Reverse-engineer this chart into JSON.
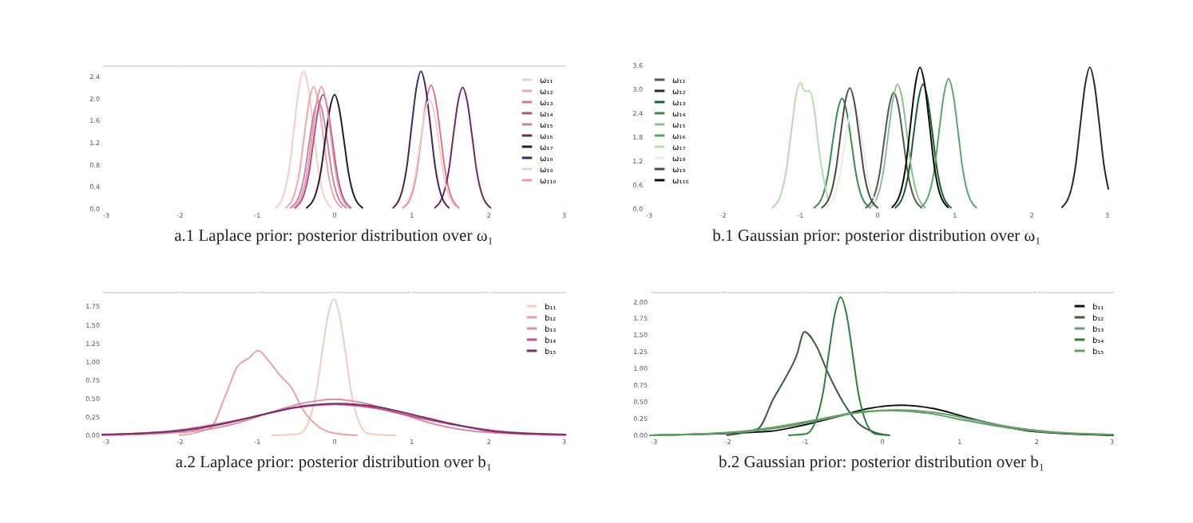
{
  "chart_data": [
    {
      "type": "line",
      "title": "a.1 Laplace prior: posterior distribution over ω₁",
      "legend": "top right",
      "grid": true,
      "xlim": [
        -3,
        3
      ],
      "xticks": [
        -3,
        -2,
        -1,
        0,
        1,
        2,
        3
      ],
      "ylim": [
        0,
        2.6
      ],
      "yticks": [
        {
          "value": 0,
          "label": "0.0"
        },
        0.4,
        0.8,
        1.2,
        1.6,
        {
          "value": 2,
          "label": "2.0"
        },
        2.4
      ],
      "series": [
        {
          "name": "ω₁₁",
          "color": "#f3cfc6",
          "x": [
            -0.75,
            -0.63,
            -0.57,
            -0.51,
            -0.45,
            -0.39,
            -0.33,
            -0.27,
            -0.21,
            -0.15,
            -0.03
          ],
          "values": [
            0.02,
            0.35,
            0.8,
            1.52,
            2.19,
            2.49,
            2.19,
            1.52,
            0.8,
            0.35,
            0.02
          ]
        },
        {
          "name": "ω₁₂",
          "color": "#eba9a7",
          "x": [
            -0.62,
            -0.5,
            -0.44,
            -0.38,
            -0.32,
            -0.26,
            -0.2,
            -0.14,
            -0.08,
            -0.02,
            0.1
          ],
          "values": [
            0.02,
            0.31,
            0.71,
            1.35,
            1.94,
            2.21,
            1.94,
            1.35,
            0.71,
            0.31,
            0.02
          ]
        },
        {
          "name": "ω₁₃",
          "color": "#d9768f",
          "x": [
            0.9,
            1.02,
            1.08,
            1.14,
            1.2,
            1.26,
            1.32,
            1.38,
            1.44,
            1.5,
            1.62
          ],
          "values": [
            0.02,
            0.31,
            0.72,
            1.37,
            1.97,
            2.24,
            1.97,
            1.37,
            0.72,
            0.31,
            0.02
          ]
        },
        {
          "name": "ω₁₄",
          "color": "#b0508a",
          "x": [
            -0.5,
            -0.38,
            -0.32,
            -0.26,
            -0.2,
            -0.14,
            -0.08,
            -0.02,
            0.04,
            0.1,
            0.22
          ],
          "values": [
            0.02,
            0.29,
            0.66,
            1.26,
            1.82,
            2.07,
            1.82,
            1.26,
            0.66,
            0.29,
            0.02
          ]
        },
        {
          "name": "ω₁₅",
          "color": "#c486ad",
          "x": [
            -0.56,
            -0.44,
            -0.38,
            -0.32,
            -0.26,
            -0.2,
            -0.14,
            -0.08,
            -0.02,
            0.04,
            0.16
          ],
          "values": [
            0.02,
            0.27,
            0.62,
            1.19,
            1.72,
            1.95,
            1.72,
            1.19,
            0.62,
            0.27,
            0.02
          ]
        },
        {
          "name": "ω₁₆",
          "color": "#6e2a68",
          "x": [
            1.31,
            1.43,
            1.49,
            1.55,
            1.61,
            1.67,
            1.73,
            1.79,
            1.85,
            1.91,
            2.03
          ],
          "values": [
            0.02,
            0.31,
            0.7,
            1.34,
            1.94,
            2.2,
            1.94,
            1.34,
            0.7,
            0.31,
            0.02
          ]
        },
        {
          "name": "ω₁₇",
          "color": "#2b1838",
          "x": [
            -0.35,
            -0.23,
            -0.17,
            -0.11,
            -0.05,
            0.01,
            0.07,
            0.13,
            0.19,
            0.25,
            0.37
          ],
          "values": [
            0.02,
            0.29,
            0.66,
            1.26,
            1.82,
            2.07,
            1.82,
            1.26,
            0.66,
            0.29,
            0.02
          ]
        },
        {
          "name": "ω₁₈",
          "color": "#4a2358",
          "x": [
            0.77,
            0.89,
            0.95,
            1.01,
            1.07,
            1.13,
            1.19,
            1.25,
            1.31,
            1.37,
            1.49
          ],
          "values": [
            0.02,
            0.35,
            0.8,
            1.52,
            2.19,
            2.49,
            2.19,
            1.52,
            0.8,
            0.35,
            0.02
          ]
        },
        {
          "name": "ω₁₉",
          "color": "#f0d2cb",
          "x": [
            0.88,
            1.0,
            1.06,
            1.12,
            1.18,
            1.24,
            1.3,
            1.36,
            1.42,
            1.48,
            1.6
          ],
          "values": [
            0.02,
            0.28,
            0.63,
            1.21,
            1.74,
            1.98,
            1.74,
            1.21,
            0.63,
            0.28,
            0.02
          ]
        },
        {
          "name": "ω₁₁₀",
          "color": "#e59aa3",
          "x": [
            -0.52,
            -0.4,
            -0.34,
            -0.28,
            -0.22,
            -0.16,
            -0.1,
            -0.04,
            0.02,
            0.08,
            0.2
          ],
          "values": [
            0.02,
            0.31,
            0.71,
            1.35,
            1.94,
            2.21,
            1.94,
            1.35,
            0.71,
            0.31,
            0.02
          ]
        }
      ]
    },
    {
      "type": "line",
      "title": "b.1 Gaussian prior: posterior distribution over ω₁",
      "legend": "top left",
      "grid": true,
      "xlim": [
        -3,
        3
      ],
      "xticks": [
        -3,
        -2,
        -1,
        0,
        1,
        2,
        3
      ],
      "ylim": [
        0,
        3.6
      ],
      "yticks": [
        {
          "value": 0,
          "label": "0.0"
        },
        0.6,
        1.2,
        1.8,
        2.4,
        {
          "value": 3,
          "label": "3.0"
        },
        3.6
      ],
      "series": [
        {
          "name": "ω₁₁",
          "color": "#555555",
          "x": [
            -0.14,
            -0.02,
            0.04,
            0.1,
            0.16,
            0.22,
            0.28,
            0.34,
            0.4,
            0.46,
            0.58
          ],
          "values": [
            0.03,
            0.41,
            0.93,
            1.78,
            2.57,
            2.92,
            2.57,
            1.78,
            0.93,
            0.41,
            0.03
          ]
        },
        {
          "name": "ω₁₂",
          "color": "#2a2a2a",
          "x": [
            2.4,
            2.52,
            2.58,
            2.64,
            2.7,
            2.76,
            2.82,
            2.88,
            2.94,
            3.0
          ],
          "values": [
            0.04,
            0.5,
            1.14,
            2.17,
            3.12,
            3.55,
            3.12,
            2.17,
            1.14,
            0.5
          ]
        },
        {
          "name": "ω₁₃",
          "color": "#1f5e2e",
          "x": [
            0.24,
            0.36,
            0.42,
            0.48,
            0.54,
            0.6,
            0.66,
            0.72,
            0.78,
            0.84,
            0.96
          ],
          "values": [
            0.03,
            0.44,
            1.0,
            1.91,
            2.75,
            3.13,
            2.75,
            1.91,
            1.0,
            0.44,
            0.03
          ]
        },
        {
          "name": "ω₁₄",
          "color": "#3f8a4f",
          "x": [
            -0.81,
            -0.69,
            -0.63,
            -0.57,
            -0.51,
            -0.45,
            -0.39,
            -0.33,
            -0.27,
            -0.21,
            -0.09
          ],
          "values": [
            0.03,
            0.39,
            0.89,
            1.69,
            2.44,
            2.77,
            2.44,
            1.69,
            0.89,
            0.39,
            0.03
          ]
        },
        {
          "name": "ω₁₅",
          "color": "#8cc28f",
          "x": [
            -0.09,
            0.03,
            0.09,
            0.15,
            0.21,
            0.27,
            0.33,
            0.39,
            0.45,
            0.51,
            0.63
          ],
          "values": [
            0.03,
            0.44,
            1.0,
            1.9,
            2.75,
            3.12,
            2.75,
            1.9,
            1.0,
            0.44,
            0.03
          ]
        },
        {
          "name": "ω₁₆",
          "color": "#5fa56a",
          "x": [
            0.57,
            0.69,
            0.75,
            0.81,
            0.87,
            0.93,
            0.99,
            1.05,
            1.11,
            1.17,
            1.29
          ],
          "values": [
            0.03,
            0.46,
            1.04,
            1.99,
            2.87,
            3.26,
            2.87,
            1.99,
            1.04,
            0.46,
            0.03
          ]
        },
        {
          "name": "ω₁₇",
          "color": "#b5dcb0",
          "x": [
            -1.35,
            -1.23,
            -1.17,
            -1.11,
            -1.05,
            -0.99,
            -0.93,
            -0.87,
            -0.81,
            -0.75,
            -0.63
          ],
          "values": [
            0.03,
            0.44,
            1.0,
            1.9,
            2.8,
            3.16,
            2.95,
            2.96,
            2.5,
            1.5,
            0.2
          ]
        },
        {
          "name": "ω₁₈",
          "color": "#e4f1e0",
          "x": [
            -0.66,
            -0.54,
            -0.48,
            -0.42,
            -0.36,
            -0.3,
            -0.24,
            -0.18,
            -0.12,
            -0.06,
            0.06
          ],
          "values": [
            0.03,
            0.36,
            0.83,
            1.59,
            2.29,
            2.6,
            2.29,
            1.59,
            0.83,
            0.36,
            0.03
          ]
        },
        {
          "name": "ω₁₉",
          "color": "#4a4a4a",
          "x": [
            -0.71,
            -0.59,
            -0.53,
            -0.47,
            -0.41,
            -0.35,
            -0.29,
            -0.23,
            -0.17,
            -0.11,
            0.01
          ],
          "values": [
            0.03,
            0.42,
            0.97,
            1.85,
            2.67,
            3.03,
            2.67,
            1.85,
            0.97,
            0.42,
            0.03
          ]
        },
        {
          "name": "ω₁₁₀",
          "color": "#0d0d0d",
          "x": [
            0.2,
            0.32,
            0.38,
            0.44,
            0.5,
            0.56,
            0.62,
            0.68,
            0.74,
            0.8,
            0.92
          ],
          "values": [
            0.04,
            0.5,
            1.14,
            2.17,
            3.12,
            3.55,
            3.12,
            2.17,
            1.14,
            0.5,
            0.04
          ]
        }
      ]
    },
    {
      "type": "line",
      "title": "a.2 Laplace prior: posterior distribution over b₁",
      "legend": "top right",
      "grid": true,
      "xlim": [
        -3,
        3
      ],
      "xticks": [
        -3,
        -2,
        -1,
        0,
        1,
        2,
        3
      ],
      "ylim": [
        0,
        1.95
      ],
      "yticks": [
        {
          "value": 0,
          "label": "0.00"
        },
        0.25,
        {
          "value": 0.5,
          "label": "0.50"
        },
        0.75,
        {
          "value": 1,
          "label": "1.00"
        },
        1.25,
        {
          "value": 1.5,
          "label": "1.50"
        },
        1.75
      ],
      "series": [
        {
          "name": "b₁₁",
          "color": "#f3cbbd",
          "x": [
            -0.8,
            -0.45,
            -0.3,
            -0.225,
            -0.15,
            -0.075,
            0,
            0.075,
            0.15,
            0.225,
            0.3,
            0.45,
            0.8
          ],
          "values": [
            0,
            0.02,
            0.26,
            0.59,
            1.13,
            1.63,
            1.85,
            1.63,
            1.13,
            0.59,
            0.26,
            0.02,
            0
          ]
        },
        {
          "name": "b₁₂",
          "color": "#e7a5a2",
          "x": [
            -2.0,
            -1.6,
            -1.4,
            -1.25,
            -1.1,
            -0.98,
            -0.85,
            -0.7,
            -0.55,
            -0.4,
            -0.2,
            0,
            0.3
          ],
          "values": [
            0,
            0.1,
            0.55,
            0.93,
            1.05,
            1.15,
            1.02,
            0.82,
            0.65,
            0.35,
            0.12,
            0.03,
            0
          ]
        },
        {
          "name": "b₁₃",
          "color": "#d78fa6",
          "x": [
            -3,
            -2.55,
            -1.7,
            -1.275,
            -0.85,
            -0.425,
            0,
            0.425,
            0.85,
            1.275,
            1.7,
            2.55,
            3
          ],
          "values": [
            0,
            0.01,
            0.07,
            0.16,
            0.3,
            0.43,
            0.49,
            0.43,
            0.3,
            0.16,
            0.07,
            0.01,
            0
          ]
        },
        {
          "name": "b₁₄",
          "color": "#c0558a",
          "x": [
            -3,
            -2.1,
            -1.575,
            -1.05,
            -0.525,
            0,
            0.525,
            1.05,
            1.575,
            2.1,
            3
          ],
          "values": [
            0.01,
            0.06,
            0.14,
            0.25,
            0.37,
            0.42,
            0.37,
            0.25,
            0.14,
            0.06,
            0.01
          ]
        },
        {
          "name": "b₁₅",
          "color": "#7a2f6a",
          "x": [
            -3,
            -2,
            -1.5,
            -1,
            -0.5,
            0.05,
            0.6,
            1.1,
            1.6,
            2.1,
            3
          ],
          "values": [
            0.01,
            0.06,
            0.14,
            0.26,
            0.38,
            0.43,
            0.38,
            0.26,
            0.14,
            0.05,
            0.01
          ]
        }
      ]
    },
    {
      "type": "line",
      "title": "b.2 Gaussian prior: posterior distribution over b₁",
      "legend": "top right",
      "grid": true,
      "xlim": [
        -3,
        3
      ],
      "xticks": [
        -3,
        -2,
        -1,
        0,
        1,
        2,
        3
      ],
      "ylim": [
        0,
        2.15
      ],
      "yticks": [
        {
          "value": 0,
          "label": "0.00"
        },
        0.25,
        {
          "value": 0.5,
          "label": "0.50"
        },
        0.75,
        {
          "value": 1,
          "label": "1.00"
        },
        1.25,
        {
          "value": 1.5,
          "label": "1.50"
        },
        1.75,
        {
          "value": 2,
          "label": "2.00"
        }
      ],
      "series": [
        {
          "name": "b₁₁",
          "color": "#111111",
          "x": [
            -3,
            -1.45,
            -1.025,
            -0.6,
            -0.175,
            0.25,
            0.675,
            1.1,
            1.525,
            1.95,
            3
          ],
          "values": [
            0,
            0.06,
            0.15,
            0.27,
            0.4,
            0.45,
            0.4,
            0.27,
            0.15,
            0.06,
            0
          ]
        },
        {
          "name": "b₁₂",
          "color": "#3d5c42",
          "x": [
            -2.0,
            -1.6,
            -1.4,
            -1.25,
            -1.1,
            -1.0,
            -0.85,
            -0.7,
            -0.5,
            -0.3,
            -0.1,
            0.1
          ],
          "values": [
            0,
            0.1,
            0.55,
            0.85,
            1.2,
            1.55,
            1.35,
            0.95,
            0.5,
            0.18,
            0.05,
            0
          ]
        },
        {
          "name": "b₁₃",
          "color": "#6f9a74",
          "x": [
            -3,
            -1.8,
            -1.3,
            -0.8,
            -0.3,
            0.2,
            0.7,
            1.2,
            1.7,
            2.2,
            3
          ],
          "values": [
            0,
            0.05,
            0.12,
            0.23,
            0.34,
            0.38,
            0.34,
            0.23,
            0.12,
            0.05,
            0.01
          ]
        },
        {
          "name": "b₁₄",
          "color": "#2e7d3c",
          "x": [
            -1.2,
            -0.98,
            -0.83,
            -0.755,
            -0.68,
            -0.605,
            -0.53,
            -0.455,
            -0.38,
            -0.305,
            -0.23,
            -0.08,
            0.1
          ],
          "values": [
            0,
            0.02,
            0.29,
            0.66,
            1.26,
            1.82,
            2.07,
            1.82,
            1.26,
            0.66,
            0.29,
            0.02,
            0
          ]
        },
        {
          "name": "b₁₅",
          "color": "#5fa064",
          "x": [
            -3,
            -1.9,
            -1.4,
            -0.9,
            -0.4,
            0.1,
            0.6,
            1.1,
            1.6,
            2.1,
            3
          ],
          "values": [
            0,
            0.05,
            0.12,
            0.22,
            0.33,
            0.37,
            0.33,
            0.22,
            0.12,
            0.05,
            0.01
          ]
        }
      ]
    }
  ]
}
